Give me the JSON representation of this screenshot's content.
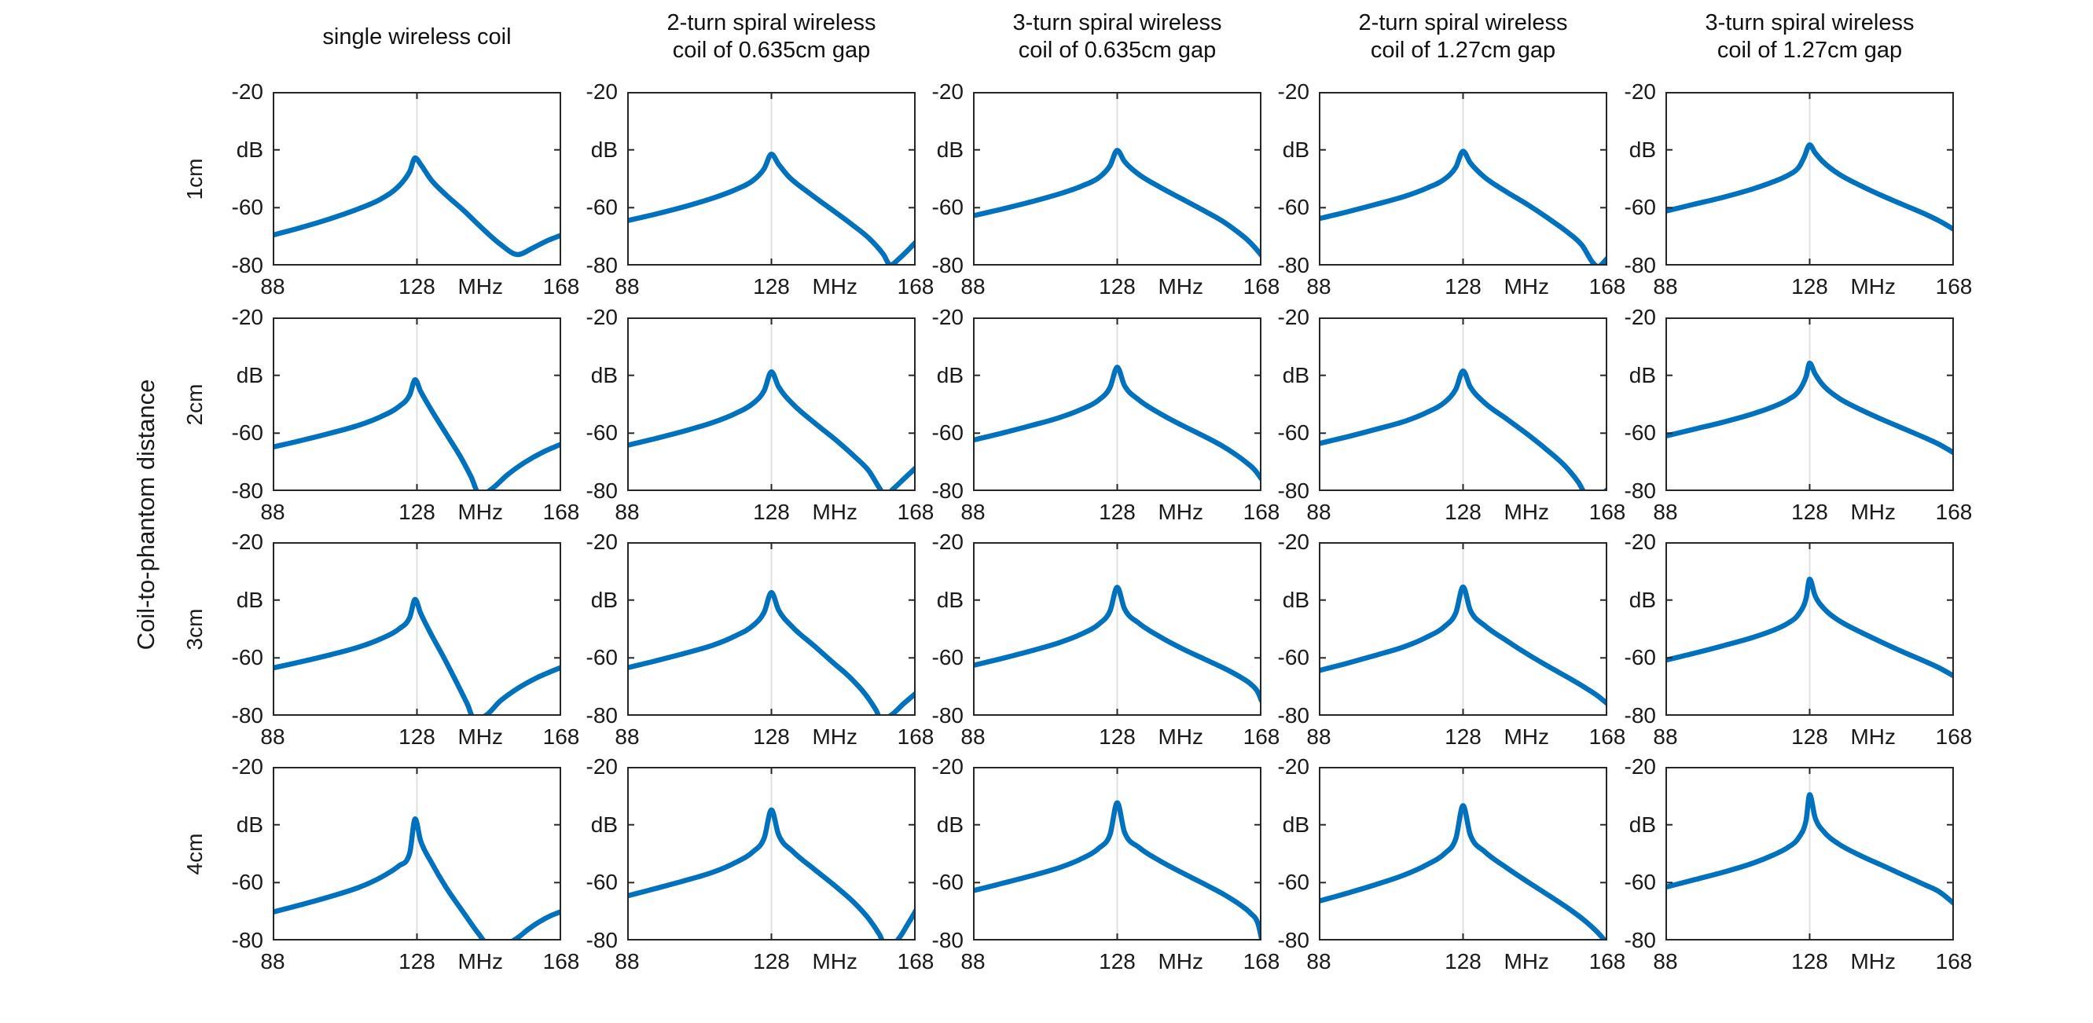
{
  "figure": {
    "ylabel_outer": "Coil-to-phantom distance",
    "row_labels": [
      "1cm",
      "2cm",
      "3cm",
      "4cm"
    ],
    "col_titles": [
      "single wireless coil",
      "2-turn spiral wireless\ncoil of 0.635cm gap",
      "3-turn spiral wireless\ncoil of 0.635cm gap",
      "2-turn spiral wireless\ncoil of 1.27cm gap",
      "3-turn spiral wireless\ncoil of 1.27cm gap"
    ],
    "colors": {
      "line": "#0072BD",
      "grid": "#e0e0e0",
      "axis": "#262626",
      "text": "#1a1a1a",
      "background": "#ffffff"
    }
  },
  "axes": {
    "xlim": [
      88,
      168
    ],
    "ylim": [
      -80,
      -20
    ],
    "x_tick_values": [
      88,
      128,
      168
    ],
    "x_tick_labels": [
      "88",
      "128",
      "168"
    ],
    "x_unit_label": "MHz",
    "y_tick_values": [
      -20,
      -40,
      -60,
      -80
    ],
    "y_tick_labels": [
      "-20",
      "dB",
      "-60",
      "-80"
    ],
    "grid_x": 128,
    "grid_on": true
  },
  "chart_data": [
    {
      "type": "line",
      "row_label": "1cm",
      "col_title": "single wireless coil",
      "peak_MHz": 127.5,
      "x": [
        88,
        96,
        104,
        112,
        118,
        123,
        126,
        127.5,
        129,
        132,
        136,
        141,
        146,
        151,
        156,
        160,
        164,
        168
      ],
      "y_dB": [
        -69.5,
        -66.8,
        -63.8,
        -60.3,
        -57,
        -52.5,
        -47.5,
        -42.8,
        -45,
        -50.5,
        -55.5,
        -61,
        -67,
        -72.5,
        -76.2,
        -74,
        -71.5,
        -69.5
      ]
    },
    {
      "type": "line",
      "row_label": "1cm",
      "col_title": "2-turn spiral wireless coil of 0.635cm gap",
      "peak_MHz": 128,
      "x": [
        88,
        96,
        104,
        112,
        118,
        123,
        126,
        128,
        130,
        133,
        138,
        144,
        150,
        155,
        159,
        161,
        163.5,
        168
      ],
      "y_dB": [
        -64.5,
        -62.2,
        -59.6,
        -56.6,
        -53.8,
        -50.5,
        -46.5,
        -41.5,
        -45,
        -49.5,
        -54.5,
        -60,
        -65.5,
        -70.5,
        -76,
        -79.8,
        -77.5,
        -72
      ]
    },
    {
      "type": "line",
      "row_label": "1cm",
      "col_title": "3-turn spiral wireless coil of 0.635cm gap",
      "peak_MHz": 128,
      "x": [
        88,
        96,
        104,
        112,
        118,
        123,
        126,
        128,
        130,
        134,
        140,
        146,
        152,
        157,
        161,
        164,
        166,
        168
      ],
      "y_dB": [
        -62.8,
        -60.5,
        -58,
        -55.2,
        -52.6,
        -49.5,
        -45.5,
        -40.2,
        -44,
        -48.5,
        -53,
        -57,
        -61,
        -64.5,
        -68,
        -71,
        -73.5,
        -76.5
      ]
    },
    {
      "type": "line",
      "row_label": "1cm",
      "col_title": "2-turn spiral wireless coil of 1.27cm gap",
      "peak_MHz": 128,
      "x": [
        88,
        96,
        104,
        112,
        118,
        123,
        126,
        128,
        130,
        134,
        140,
        146,
        152,
        157,
        161,
        164,
        165.5,
        168
      ],
      "y_dB": [
        -63.8,
        -61.4,
        -58.8,
        -56,
        -53.2,
        -50,
        -46,
        -40.5,
        -44.5,
        -49.5,
        -54.5,
        -59,
        -64,
        -68.5,
        -73,
        -79,
        -80.3,
        -77.5
      ]
    },
    {
      "type": "line",
      "row_label": "1cm",
      "col_title": "3-turn spiral wireless coil of 1.27cm gap",
      "peak_MHz": 128,
      "x": [
        88,
        96,
        104,
        112,
        118,
        122,
        125,
        126.5,
        128,
        129.5,
        132,
        136,
        142,
        148,
        154,
        160,
        164,
        168
      ],
      "y_dB": [
        -61.2,
        -58.8,
        -56.4,
        -53.6,
        -51,
        -48.8,
        -46,
        -42.5,
        -38.3,
        -41,
        -44.5,
        -48.3,
        -52.3,
        -55.8,
        -59,
        -62.2,
        -64.6,
        -67.5
      ]
    },
    {
      "type": "line",
      "row_label": "2cm",
      "col_title": "single wireless coil",
      "peak_MHz": 127.5,
      "x": [
        88,
        96,
        104,
        112,
        118,
        123,
        126,
        127.5,
        129,
        132,
        136,
        140,
        143,
        145.5,
        149,
        153,
        158,
        163,
        168
      ],
      "y_dB": [
        -64.8,
        -62.5,
        -60,
        -57.2,
        -54.3,
        -50.8,
        -46.8,
        -41.5,
        -45.5,
        -52,
        -60,
        -68,
        -75,
        -81.5,
        -79,
        -74.5,
        -70,
        -66.5,
        -63.8
      ]
    },
    {
      "type": "line",
      "row_label": "2cm",
      "col_title": "2-turn spiral wireless coil of 0.635cm gap",
      "peak_MHz": 128,
      "x": [
        88,
        96,
        104,
        112,
        118,
        123,
        126,
        128,
        130,
        134,
        140,
        146,
        151,
        155,
        158,
        159.5,
        162,
        165,
        168
      ],
      "y_dB": [
        -64.2,
        -61.8,
        -59.2,
        -56.2,
        -53.2,
        -49.6,
        -45.3,
        -38.8,
        -44,
        -50,
        -56.5,
        -62.5,
        -68,
        -73,
        -79,
        -81.5,
        -79,
        -75.5,
        -72
      ]
    },
    {
      "type": "line",
      "row_label": "2cm",
      "col_title": "3-turn spiral wireless coil of 0.635cm gap",
      "peak_MHz": 128,
      "x": [
        88,
        96,
        104,
        112,
        118,
        123,
        126,
        128,
        130,
        134,
        140,
        146,
        152,
        157,
        161,
        164,
        166,
        168
      ],
      "y_dB": [
        -62.4,
        -60,
        -57.4,
        -54.6,
        -51.8,
        -48.4,
        -44.2,
        -37.2,
        -43.5,
        -48.5,
        -53.3,
        -57.3,
        -61,
        -64.3,
        -67.5,
        -70.3,
        -72.5,
        -75.8
      ]
    },
    {
      "type": "line",
      "row_label": "2cm",
      "col_title": "2-turn spiral wireless coil of 1.27cm gap",
      "peak_MHz": 128,
      "x": [
        88,
        96,
        104,
        112,
        118,
        123,
        126,
        128,
        130,
        134,
        140,
        146,
        151,
        156,
        160,
        162,
        164,
        166.5,
        168
      ],
      "y_dB": [
        -63.6,
        -61.2,
        -58.6,
        -55.8,
        -52.8,
        -49.2,
        -44.8,
        -38.5,
        -44,
        -49.5,
        -55,
        -60.5,
        -65.5,
        -71,
        -77,
        -81,
        -81.5,
        -81,
        -79.5
      ]
    },
    {
      "type": "line",
      "row_label": "2cm",
      "col_title": "3-turn spiral wireless coil of 1.27cm gap",
      "peak_MHz": 128,
      "x": [
        88,
        96,
        104,
        112,
        118,
        122,
        125,
        127,
        128,
        129.5,
        132,
        136,
        142,
        148,
        154,
        160,
        164,
        168
      ],
      "y_dB": [
        -61,
        -58.6,
        -56.2,
        -53.4,
        -50.8,
        -48.4,
        -45.4,
        -40.5,
        -35.8,
        -39.5,
        -43.8,
        -47.8,
        -51.8,
        -55.2,
        -58.4,
        -61.6,
        -63.9,
        -66.8
      ]
    },
    {
      "type": "line",
      "row_label": "3cm",
      "col_title": "single wireless coil",
      "peak_MHz": 127.5,
      "x": [
        88,
        96,
        104,
        112,
        118,
        123,
        126,
        127.5,
        129,
        132,
        135.5,
        139,
        142,
        144,
        147.5,
        151,
        156,
        161,
        165,
        168
      ],
      "y_dB": [
        -63.5,
        -61.3,
        -58.9,
        -56.2,
        -53.4,
        -50,
        -46,
        -39.8,
        -44.5,
        -52,
        -60,
        -68.5,
        -76,
        -81.5,
        -79.5,
        -75,
        -70.5,
        -67,
        -64.8,
        -63.3
      ]
    },
    {
      "type": "line",
      "row_label": "3cm",
      "col_title": "2-turn spiral wireless coil of 0.635cm gap",
      "peak_MHz": 128,
      "x": [
        88,
        96,
        104,
        112,
        118,
        123,
        126,
        128,
        130,
        134,
        140,
        145,
        150,
        154,
        157,
        158.5,
        161.5,
        164.5,
        168
      ],
      "y_dB": [
        -63.4,
        -61,
        -58.4,
        -55.5,
        -52.4,
        -48.7,
        -44.2,
        -37.4,
        -43.5,
        -49.5,
        -56,
        -61.5,
        -67,
        -72.5,
        -78,
        -81.5,
        -79.5,
        -76,
        -72.3
      ]
    },
    {
      "type": "line",
      "row_label": "3cm",
      "col_title": "3-turn spiral wireless coil of 0.635cm gap",
      "peak_MHz": 128,
      "x": [
        88,
        96,
        104,
        112,
        118,
        123,
        126,
        128,
        130,
        134,
        140,
        146,
        152,
        158,
        162,
        165,
        167,
        168
      ],
      "y_dB": [
        -62.6,
        -60.2,
        -57.6,
        -54.7,
        -51.8,
        -48.2,
        -43.8,
        -35.6,
        -43,
        -48,
        -52.8,
        -56.8,
        -60.3,
        -63.8,
        -66.5,
        -69,
        -71.8,
        -74.8
      ]
    },
    {
      "type": "line",
      "row_label": "3cm",
      "col_title": "2-turn spiral wireless coil of 1.27cm gap",
      "peak_MHz": 128,
      "x": [
        88,
        96,
        104,
        112,
        118,
        123,
        126,
        128,
        130,
        134,
        140,
        146,
        152,
        158,
        162,
        165,
        168
      ],
      "y_dB": [
        -64.4,
        -61.8,
        -59,
        -56,
        -52.8,
        -49,
        -44.4,
        -35.5,
        -43.5,
        -48.8,
        -54,
        -58.8,
        -63.2,
        -67.4,
        -70.4,
        -72.8,
        -75.8
      ]
    },
    {
      "type": "line",
      "row_label": "3cm",
      "col_title": "3-turn spiral wireless coil of 1.27cm gap",
      "peak_MHz": 128,
      "x": [
        88,
        96,
        104,
        112,
        118,
        122,
        125,
        127,
        128,
        129.5,
        132,
        136,
        142,
        148,
        154,
        160,
        164,
        168
      ],
      "y_dB": [
        -60.8,
        -58.4,
        -55.8,
        -53,
        -50.4,
        -48,
        -44.8,
        -39.5,
        -32.8,
        -38.5,
        -43,
        -47,
        -51,
        -54.6,
        -58,
        -61.2,
        -63.5,
        -66.3
      ]
    },
    {
      "type": "line",
      "row_label": "4cm",
      "col_title": "single wireless coil",
      "peak_MHz": 127.5,
      "x": [
        88,
        96,
        104,
        112,
        118,
        123,
        126,
        127.5,
        129,
        132,
        136,
        141,
        145,
        148,
        152,
        156,
        159,
        162,
        165,
        168
      ],
      "y_dB": [
        -70.2,
        -67.6,
        -64.8,
        -61.6,
        -58.2,
        -54.2,
        -49.8,
        -38,
        -45.5,
        -53,
        -61.5,
        -70.5,
        -77.5,
        -81.5,
        -81.5,
        -79,
        -76,
        -73.5,
        -71.5,
        -70
      ]
    },
    {
      "type": "line",
      "row_label": "4cm",
      "col_title": "2-turn spiral wireless coil of 0.635cm gap",
      "peak_MHz": 128,
      "x": [
        88,
        96,
        104,
        112,
        118,
        123,
        126,
        128,
        130,
        134,
        140,
        146,
        151,
        155,
        158,
        159.5,
        161.5,
        163.5,
        166,
        168
      ],
      "y_dB": [
        -64.6,
        -62,
        -59.3,
        -56.3,
        -53.1,
        -49.2,
        -44.6,
        -34.9,
        -43.5,
        -49.3,
        -55.5,
        -61.5,
        -67,
        -72.5,
        -78,
        -81.5,
        -81.5,
        -79,
        -74,
        -69.8
      ]
    },
    {
      "type": "line",
      "row_label": "4cm",
      "col_title": "3-turn spiral wireless coil of 0.635cm gap",
      "peak_MHz": 128,
      "x": [
        88,
        96,
        104,
        112,
        118,
        123,
        126,
        128,
        130,
        134,
        140,
        146,
        152,
        158,
        162,
        165,
        167,
        168
      ],
      "y_dB": [
        -62.8,
        -60.3,
        -57.7,
        -54.8,
        -51.8,
        -48,
        -43.4,
        -32.4,
        -42.5,
        -47.8,
        -52.6,
        -56.6,
        -60.4,
        -64.4,
        -67.6,
        -70.6,
        -74,
        -79.2
      ]
    },
    {
      "type": "line",
      "row_label": "4cm",
      "col_title": "2-turn spiral wireless coil of 1.27cm gap",
      "peak_MHz": 128,
      "x": [
        88,
        96,
        104,
        112,
        118,
        123,
        126,
        128,
        130,
        134,
        140,
        146,
        152,
        158,
        162,
        165,
        167,
        168
      ],
      "y_dB": [
        -66.4,
        -63.6,
        -60.6,
        -57.2,
        -53.8,
        -49.8,
        -44.8,
        -33.4,
        -43.5,
        -49.3,
        -54.8,
        -59.8,
        -64.6,
        -69.6,
        -73.4,
        -76.8,
        -79.5,
        -81
      ]
    },
    {
      "type": "line",
      "row_label": "4cm",
      "col_title": "3-turn spiral wireless coil of 1.27cm gap",
      "peak_MHz": 128,
      "x": [
        88,
        96,
        104,
        112,
        118,
        122,
        125,
        127,
        128,
        129.5,
        132,
        136,
        142,
        148,
        154,
        160,
        164,
        168
      ],
      "y_dB": [
        -61.6,
        -59,
        -56.4,
        -53.4,
        -50.4,
        -47.8,
        -44.4,
        -38.5,
        -29.6,
        -37.5,
        -42.5,
        -46.6,
        -50.6,
        -54,
        -57.4,
        -60.8,
        -63.2,
        -67.2
      ]
    }
  ]
}
